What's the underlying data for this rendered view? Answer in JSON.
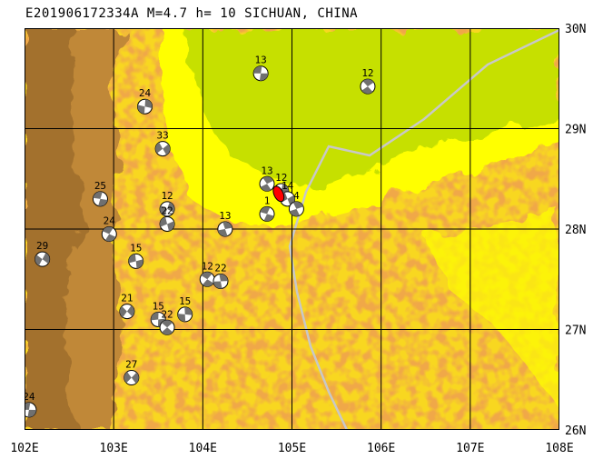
{
  "title": "E201906172334A M=4.7 h= 10 SICHUAN, CHINA",
  "colors": {
    "low_green": "#c6e000",
    "yellow": "#ffff00",
    "orange": "#f0a848",
    "brown": "#c08838",
    "dark_brown": "#9a6a2a",
    "border_gray": "#c8c8c8",
    "grid": "#000000",
    "event": "#ff0000"
  },
  "axes": {
    "lon_min": 102,
    "lon_max": 108,
    "lat_min": 26,
    "lat_max": 30,
    "lon_labels": [
      "102E",
      "103E",
      "104E",
      "105E",
      "106E",
      "107E",
      "108E"
    ],
    "lat_labels": [
      "30N",
      "29N",
      "28N",
      "27N",
      "26N"
    ]
  },
  "mechanisms": [
    {
      "label": "13",
      "lon": 104.65,
      "lat": 29.55
    },
    {
      "label": "12",
      "lon": 105.85,
      "lat": 29.42
    },
    {
      "label": "24",
      "lon": 103.35,
      "lat": 29.22
    },
    {
      "label": "33",
      "lon": 103.55,
      "lat": 28.8
    },
    {
      "label": "25",
      "lon": 102.85,
      "lat": 28.3
    },
    {
      "label": "13",
      "lon": 104.72,
      "lat": 28.45
    },
    {
      "label": "12",
      "lon": 104.88,
      "lat": 28.38
    },
    {
      "label": "14",
      "lon": 104.95,
      "lat": 28.3
    },
    {
      "label": "1",
      "lon": 104.72,
      "lat": 28.15
    },
    {
      "label": "4",
      "lon": 105.05,
      "lat": 28.2
    },
    {
      "label": "12",
      "lon": 103.6,
      "lat": 28.2
    },
    {
      "label": "22",
      "lon": 103.6,
      "lat": 28.05
    },
    {
      "label": "24",
      "lon": 102.95,
      "lat": 27.95
    },
    {
      "label": "13",
      "lon": 104.25,
      "lat": 28.0
    },
    {
      "label": "29",
      "lon": 102.2,
      "lat": 27.7
    },
    {
      "label": "15",
      "lon": 103.25,
      "lat": 27.68
    },
    {
      "label": "12",
      "lon": 104.05,
      "lat": 27.5
    },
    {
      "label": "22",
      "lon": 104.2,
      "lat": 27.48
    },
    {
      "label": "21",
      "lon": 103.15,
      "lat": 27.18
    },
    {
      "label": "15",
      "lon": 103.5,
      "lat": 27.1
    },
    {
      "label": "22",
      "lon": 103.6,
      "lat": 27.02
    },
    {
      "label": "15",
      "lon": 103.8,
      "lat": 27.15
    },
    {
      "label": "27",
      "lon": 103.2,
      "lat": 26.52
    },
    {
      "label": "24",
      "lon": 102.05,
      "lat": 26.2
    }
  ],
  "event_marker": {
    "lon": 104.85,
    "lat": 28.35
  }
}
